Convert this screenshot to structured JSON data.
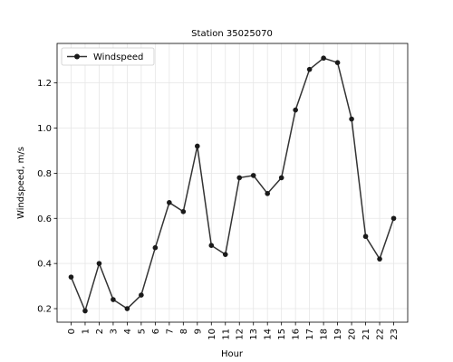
{
  "chart_data": {
    "type": "line",
    "title": "Station 35025070",
    "xlabel": "Hour",
    "ylabel": "Windspeed, m/s",
    "x": [
      0,
      1,
      2,
      3,
      4,
      5,
      6,
      7,
      8,
      9,
      10,
      11,
      12,
      13,
      14,
      15,
      16,
      17,
      18,
      19,
      20,
      21,
      22,
      23
    ],
    "x_tick_labels": [
      "0",
      "1",
      "2",
      "3",
      "4",
      "5",
      "6",
      "7",
      "8",
      "9",
      "10",
      "11",
      "12",
      "13",
      "14",
      "15",
      "16",
      "17",
      "18",
      "19",
      "20",
      "21",
      "22",
      "23"
    ],
    "series": [
      {
        "name": "Windspeed",
        "values": [
          0.34,
          0.19,
          0.4,
          0.24,
          0.2,
          0.26,
          0.47,
          0.67,
          0.63,
          0.92,
          0.48,
          0.44,
          0.78,
          0.79,
          0.71,
          0.78,
          1.08,
          1.26,
          1.31,
          1.29,
          1.04,
          0.52,
          0.42,
          0.6
        ]
      }
    ],
    "xlim": [
      -1,
      24
    ],
    "ylim": [
      0.14,
      1.375
    ],
    "y_ticks": [
      0.2,
      0.4,
      0.6,
      0.8,
      1.0,
      1.2
    ],
    "y_tick_labels": [
      "0.2",
      "0.4",
      "0.6",
      "0.8",
      "1.0",
      "1.2"
    ],
    "grid": true,
    "legend_position": "top-left",
    "line_color": "#333333",
    "marker_color": "#1a1a1a"
  }
}
